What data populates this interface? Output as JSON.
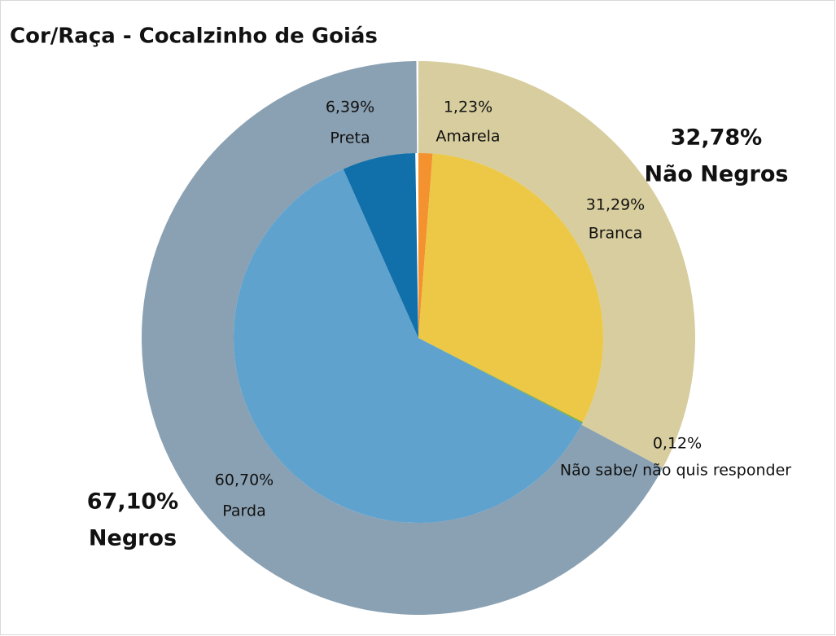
{
  "chart_data": {
    "type": "pie",
    "title": "Cor/Raça - Cocalzinho de Goiás",
    "categories": [
      "Amarela",
      "Branca",
      "Não sabe/ não quis responder",
      "Parda",
      "Preta"
    ],
    "values": [
      1.23,
      31.29,
      0.12,
      60.7,
      6.39
    ],
    "value_labels": [
      "1,23%",
      "31,29%",
      "0,12%",
      "60,70%",
      "6,39%"
    ],
    "colors": [
      "#f3922e",
      "#ecc846",
      "#7fad3b",
      "#5fa2ce",
      "#1170aa"
    ],
    "outer": {
      "categories": [
        "Não Negros",
        "Negros"
      ],
      "values": [
        32.78,
        67.1
      ],
      "value_labels": [
        "32,78%",
        "67,10%"
      ],
      "colors": [
        "#d7cd9e",
        "#8aa1b3"
      ]
    }
  }
}
